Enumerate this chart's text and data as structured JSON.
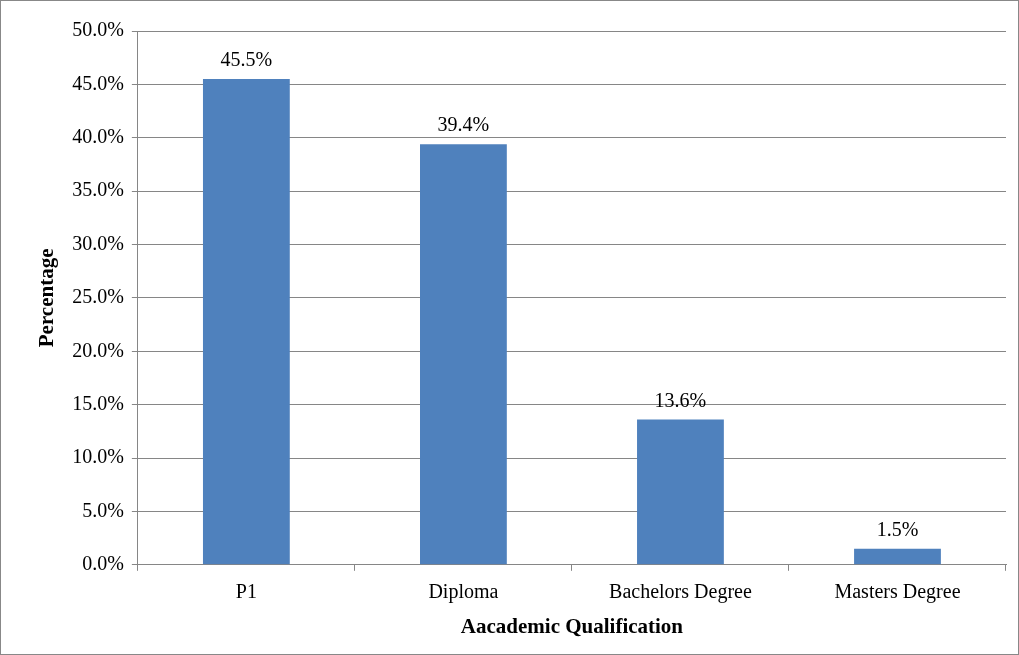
{
  "chart_data": {
    "type": "bar",
    "xlabel": "Aacademic Qualification",
    "ylabel": "Percentage",
    "categories": [
      "P1",
      "Diploma",
      "Bachelors Degree",
      "Masters Degree"
    ],
    "values": [
      45.5,
      39.4,
      13.6,
      1.5
    ],
    "color": "#4f81bd",
    "value_labels": [
      "45.5%",
      "39.4%",
      "13.6%",
      "1.5%"
    ],
    "ylim": [
      0,
      50
    ],
    "yticks": [
      {
        "value": 0,
        "label": "0.0%"
      },
      {
        "value": 5,
        "label": "5.0%"
      },
      {
        "value": 10,
        "label": "10.0%"
      },
      {
        "value": 15,
        "label": "15.0%"
      },
      {
        "value": 20,
        "label": "20.0%"
      },
      {
        "value": 25,
        "label": "25.0%"
      },
      {
        "value": 30,
        "label": "30.0%"
      },
      {
        "value": 35,
        "label": "35.0%"
      },
      {
        "value": 40,
        "label": "40.0%"
      },
      {
        "value": 45,
        "label": "45.0%"
      },
      {
        "value": 50,
        "label": "50.0%"
      }
    ],
    "grid": "y",
    "legend": false
  }
}
